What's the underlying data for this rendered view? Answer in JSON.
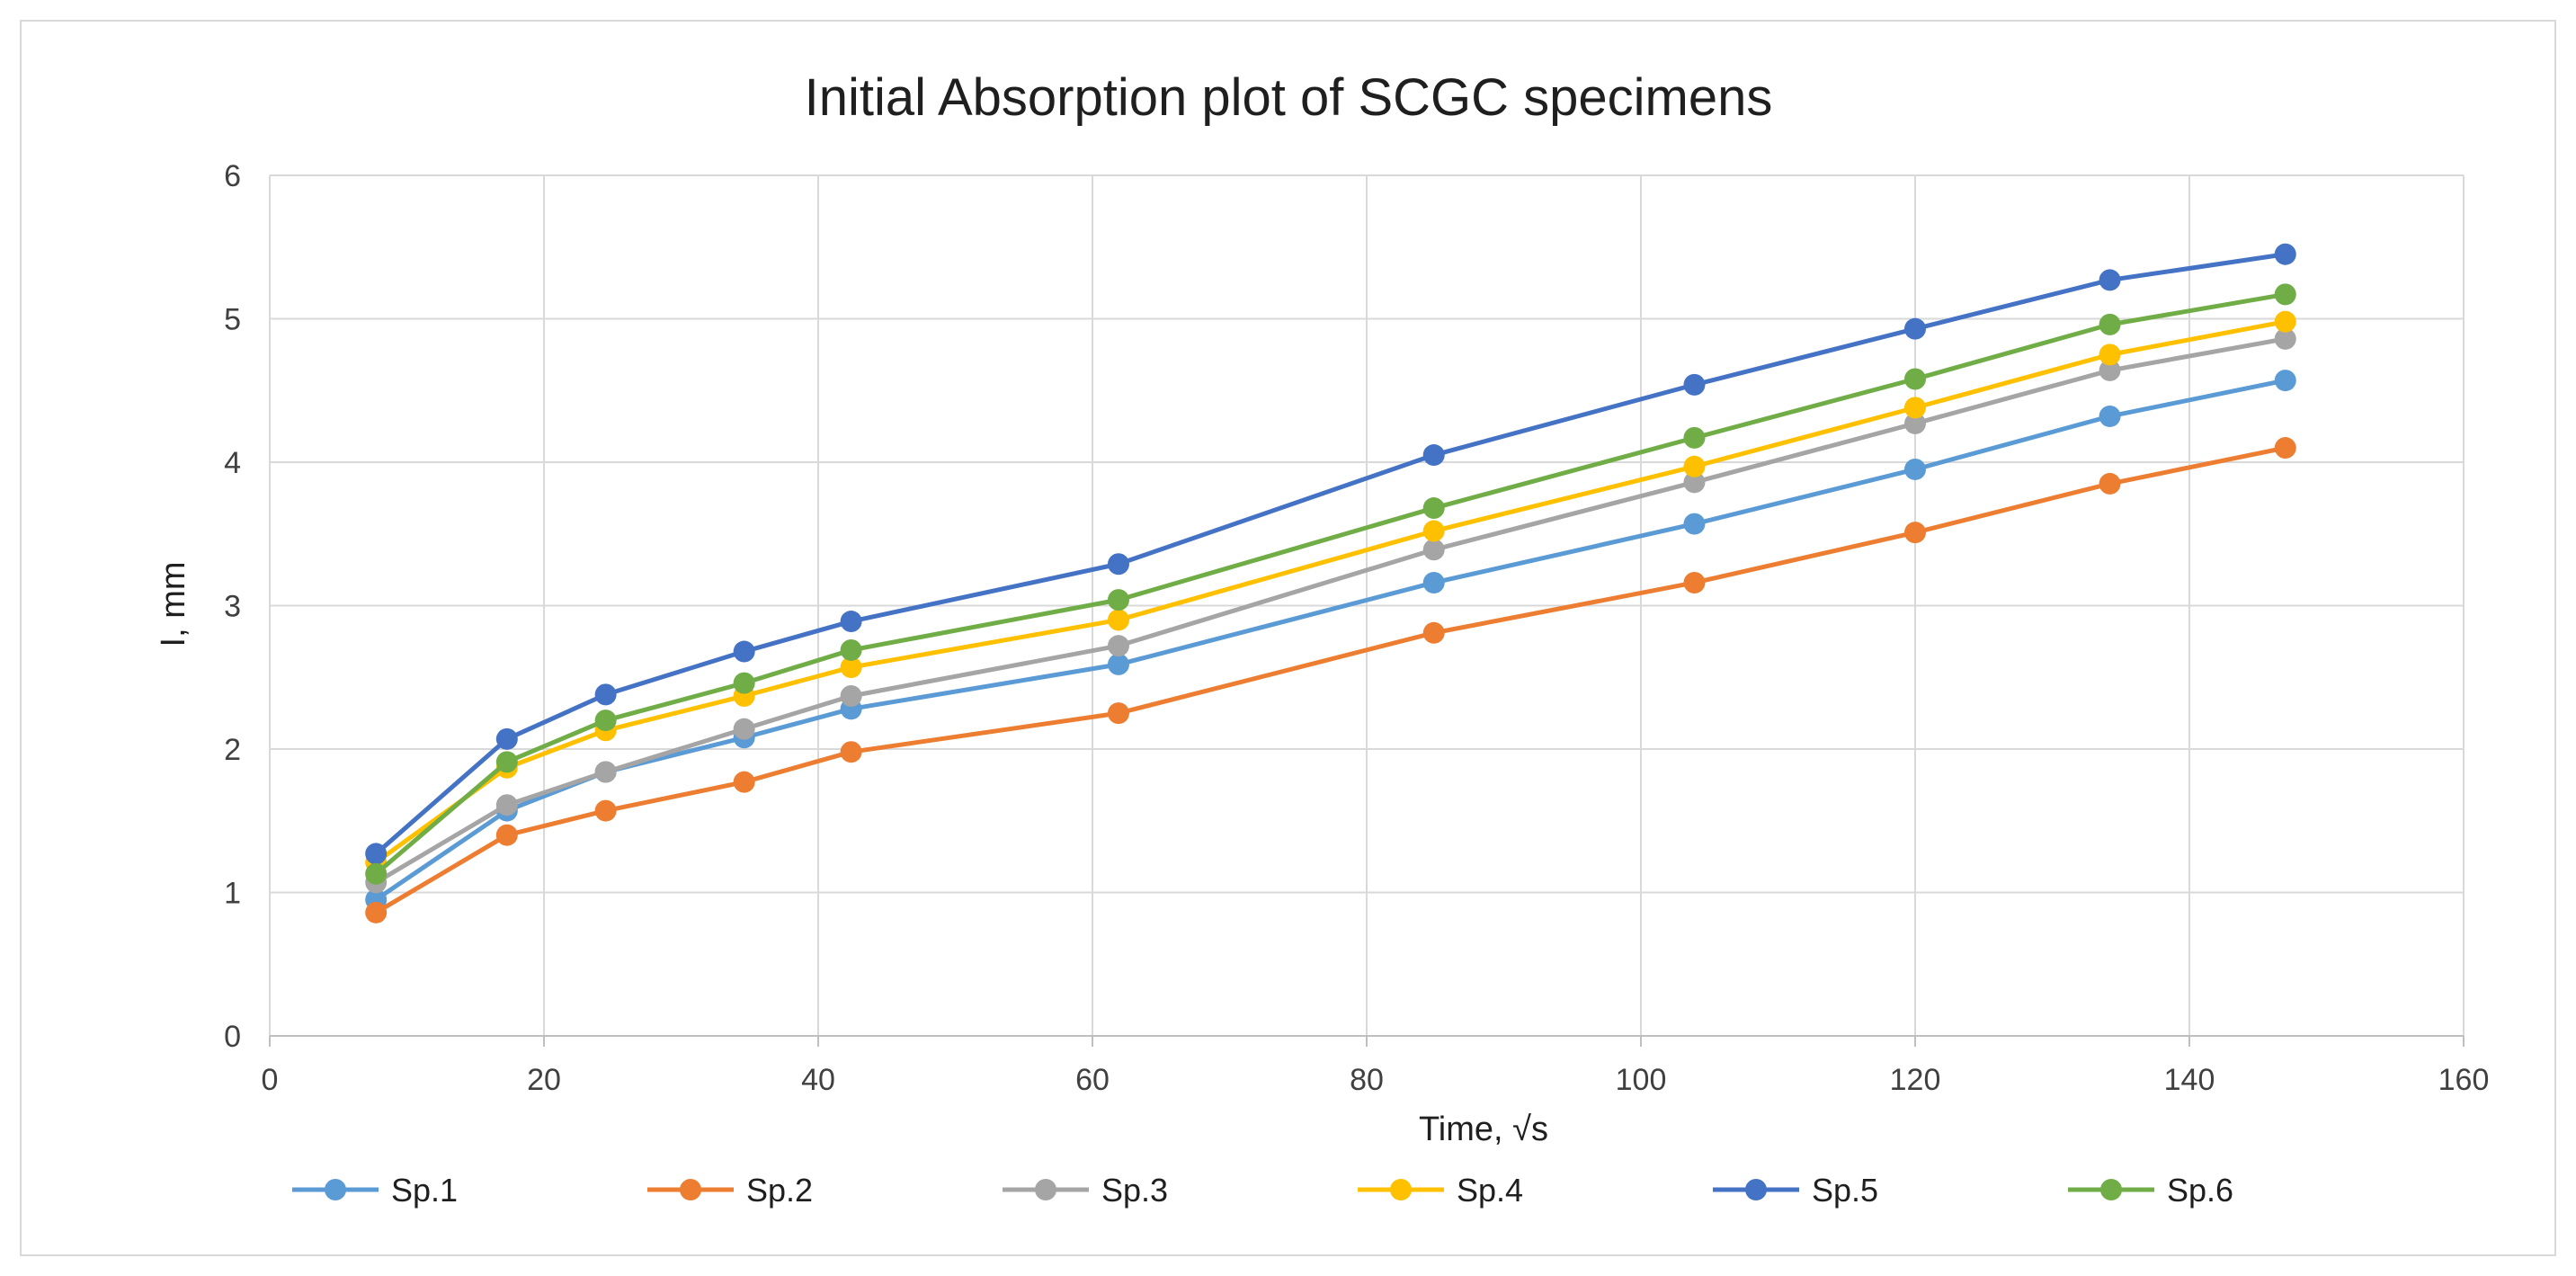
{
  "chart_data": {
    "type": "line",
    "title": "Initial Absorption plot of SCGC specimens",
    "xlabel": "Time, √s",
    "ylabel": "I, mm",
    "xlim": [
      0,
      160
    ],
    "ylim": [
      0,
      6
    ],
    "xticks": [
      0,
      20,
      40,
      60,
      80,
      100,
      120,
      140,
      160
    ],
    "yticks": [
      0,
      1,
      2,
      3,
      4,
      5,
      6
    ],
    "grid": true,
    "legend_position": "bottom",
    "x": [
      7.75,
      17.3,
      24.5,
      34.6,
      42.4,
      61.9,
      84.9,
      103.9,
      120.0,
      134.2,
      147.0
    ],
    "series": [
      {
        "name": "Sp.1",
        "color": "#5B9BD5",
        "values": [
          0.95,
          1.57,
          1.84,
          2.08,
          2.28,
          2.59,
          3.16,
          3.57,
          3.95,
          4.32,
          4.57
        ]
      },
      {
        "name": "Sp.2",
        "color": "#ED7D31",
        "values": [
          0.86,
          1.4,
          1.57,
          1.77,
          1.98,
          2.25,
          2.81,
          3.16,
          3.51,
          3.85,
          4.1
        ]
      },
      {
        "name": "Sp.3",
        "color": "#A5A5A5",
        "values": [
          1.07,
          1.61,
          1.84,
          2.14,
          2.37,
          2.72,
          3.39,
          3.86,
          4.27,
          4.64,
          4.86
        ]
      },
      {
        "name": "Sp.4",
        "color": "#FFC000",
        "values": [
          1.21,
          1.87,
          2.13,
          2.37,
          2.57,
          2.9,
          3.52,
          3.97,
          4.38,
          4.75,
          4.98
        ]
      },
      {
        "name": "Sp.5",
        "color": "#4472C4",
        "values": [
          1.27,
          2.07,
          2.38,
          2.68,
          2.89,
          3.29,
          4.05,
          4.54,
          4.93,
          5.27,
          5.45
        ]
      },
      {
        "name": "Sp.6",
        "color": "#70AD47",
        "values": [
          1.13,
          1.91,
          2.2,
          2.46,
          2.69,
          3.04,
          3.68,
          4.17,
          4.58,
          4.96,
          5.17
        ]
      }
    ]
  },
  "colors": {
    "grid": "#d9d9d9",
    "axis": "#bfbfbf",
    "frame": "#d9d9d9"
  }
}
